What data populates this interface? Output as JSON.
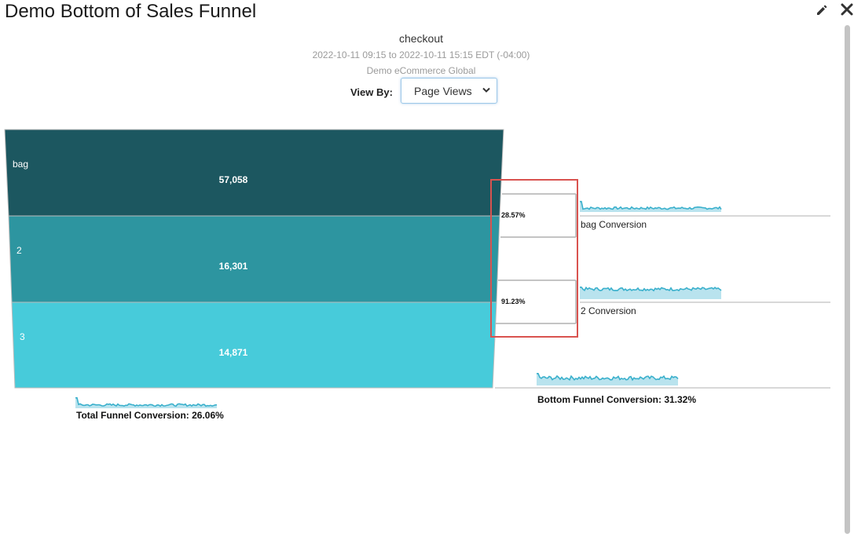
{
  "header": {
    "title": "Demo Bottom of Sales Funnel",
    "edit_icon": "pencil-icon",
    "close_icon": "close-icon"
  },
  "report": {
    "subtitle": "checkout",
    "date_range": "2022-10-11 09:15 to 2022-10-11 15:15 EDT (-04:00)",
    "account": "Demo eCommerce Global"
  },
  "view_by": {
    "label": "View By:",
    "selected": "Page Views"
  },
  "funnel": {
    "stages": [
      {
        "label": "bag",
        "value_text": "57,058",
        "value": 57058
      },
      {
        "label": "2",
        "value_text": "16,301",
        "value": 16301
      },
      {
        "label": "3",
        "value_text": "14,871",
        "value": 14871
      }
    ],
    "step_conversions": [
      {
        "percent": "28.57%",
        "label": "bag Conversion"
      },
      {
        "percent": "91.23%",
        "label": "2 Conversion"
      }
    ],
    "total_conversion": "Total Funnel Conversion: 26.06%",
    "bottom_conversion": "Bottom Funnel Conversion: 31.32%"
  },
  "colors": {
    "stage_1": "#1c5760",
    "stage_2": "#2d95a0",
    "stage_3": "#47cbda",
    "sparkline": "#3ab0cc",
    "sparkline_fill": "#b9e3ee",
    "highlight_box": "#d9534f"
  }
}
